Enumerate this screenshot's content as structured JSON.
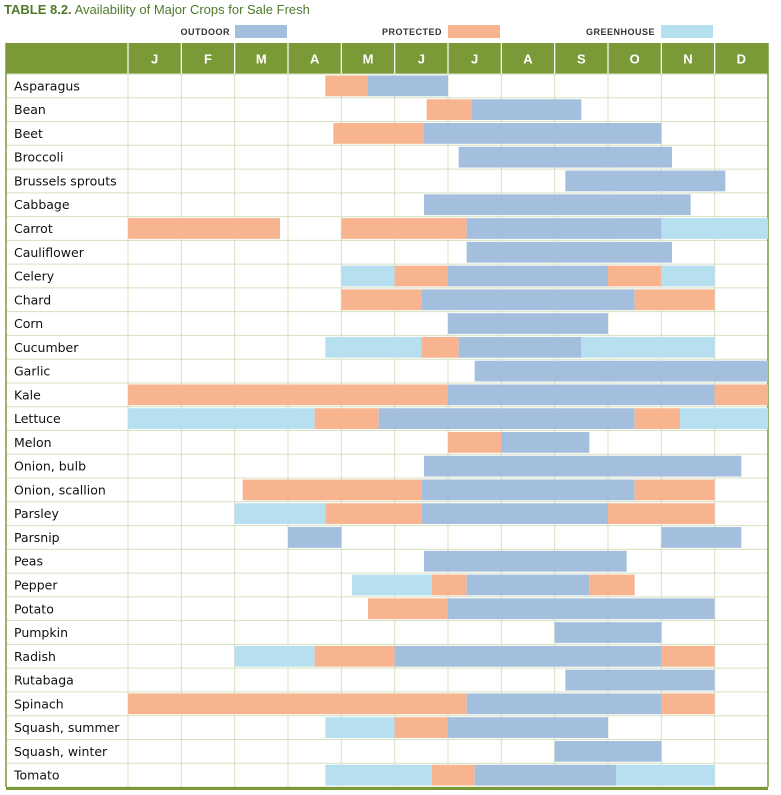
{
  "title_prefix": "TABLE 8.2.",
  "title_text": "Availability of Major Crops for Sale Fresh",
  "legend": [
    {
      "key": "O",
      "label": "OUTDOOR",
      "color": "#a3bfdd"
    },
    {
      "key": "P",
      "label": "PROTECTED",
      "color": "#f7b48f"
    },
    {
      "key": "G",
      "label": "GREENHOUSE",
      "color": "#b6dff0"
    }
  ],
  "chart_data": {
    "type": "table",
    "title": "Availability of Major Crops for Sale Fresh",
    "months": [
      "J",
      "F",
      "M",
      "A",
      "M",
      "J",
      "J",
      "A",
      "S",
      "O",
      "N",
      "D"
    ],
    "x_unit": "month (0 = start of January, 12 = end of December)",
    "crops": [
      {
        "name": "Asparagus",
        "spans": [
          {
            "t": "P",
            "s": 3.7,
            "e": 4.5
          },
          {
            "t": "O",
            "s": 4.5,
            "e": 6.0
          }
        ]
      },
      {
        "name": "Bean",
        "spans": [
          {
            "t": "P",
            "s": 5.6,
            "e": 6.45
          },
          {
            "t": "O",
            "s": 6.45,
            "e": 8.5
          }
        ]
      },
      {
        "name": "Beet",
        "spans": [
          {
            "t": "P",
            "s": 3.85,
            "e": 5.55
          },
          {
            "t": "O",
            "s": 5.55,
            "e": 10.0
          }
        ]
      },
      {
        "name": "Broccoli",
        "spans": [
          {
            "t": "O",
            "s": 6.2,
            "e": 10.2
          }
        ]
      },
      {
        "name": "Brussels sprouts",
        "spans": [
          {
            "t": "O",
            "s": 8.2,
            "e": 11.2
          }
        ]
      },
      {
        "name": "Cabbage",
        "spans": [
          {
            "t": "O",
            "s": 5.55,
            "e": 10.55
          }
        ]
      },
      {
        "name": "Carrot",
        "spans": [
          {
            "t": "P",
            "s": 0.0,
            "e": 2.85
          },
          {
            "t": "P",
            "s": 4.0,
            "e": 6.35
          },
          {
            "t": "O",
            "s": 6.35,
            "e": 10.0
          },
          {
            "t": "G",
            "s": 10.0,
            "e": 12.0
          }
        ]
      },
      {
        "name": "Cauliflower",
        "spans": [
          {
            "t": "O",
            "s": 6.35,
            "e": 10.2
          }
        ]
      },
      {
        "name": "Celery",
        "spans": [
          {
            "t": "G",
            "s": 4.0,
            "e": 5.0
          },
          {
            "t": "P",
            "s": 5.0,
            "e": 6.0
          },
          {
            "t": "O",
            "s": 6.0,
            "e": 9.0
          },
          {
            "t": "P",
            "s": 9.0,
            "e": 10.0
          },
          {
            "t": "G",
            "s": 10.0,
            "e": 11.0
          }
        ]
      },
      {
        "name": "Chard",
        "spans": [
          {
            "t": "P",
            "s": 4.0,
            "e": 5.5
          },
          {
            "t": "O",
            "s": 5.5,
            "e": 9.5
          },
          {
            "t": "P",
            "s": 9.5,
            "e": 11.0
          }
        ]
      },
      {
        "name": "Corn",
        "spans": [
          {
            "t": "O",
            "s": 6.0,
            "e": 9.0
          }
        ]
      },
      {
        "name": "Cucumber",
        "spans": [
          {
            "t": "G",
            "s": 3.7,
            "e": 5.5
          },
          {
            "t": "P",
            "s": 5.5,
            "e": 6.2
          },
          {
            "t": "O",
            "s": 6.2,
            "e": 8.5
          },
          {
            "t": "G",
            "s": 8.5,
            "e": 11.0
          }
        ]
      },
      {
        "name": "Garlic",
        "spans": [
          {
            "t": "O",
            "s": 6.5,
            "e": 12.0
          }
        ]
      },
      {
        "name": "Kale",
        "spans": [
          {
            "t": "P",
            "s": 0.0,
            "e": 6.0
          },
          {
            "t": "O",
            "s": 6.0,
            "e": 11.0
          },
          {
            "t": "P",
            "s": 11.0,
            "e": 12.0
          }
        ]
      },
      {
        "name": "Lettuce",
        "spans": [
          {
            "t": "G",
            "s": 0.0,
            "e": 3.5
          },
          {
            "t": "P",
            "s": 3.5,
            "e": 4.7
          },
          {
            "t": "O",
            "s": 4.7,
            "e": 9.5
          },
          {
            "t": "P",
            "s": 9.5,
            "e": 10.35
          },
          {
            "t": "G",
            "s": 10.35,
            "e": 12.0
          }
        ]
      },
      {
        "name": "Melon",
        "spans": [
          {
            "t": "P",
            "s": 6.0,
            "e": 7.0
          },
          {
            "t": "O",
            "s": 7.0,
            "e": 8.65
          }
        ]
      },
      {
        "name": "Onion, bulb",
        "spans": [
          {
            "t": "O",
            "s": 5.55,
            "e": 11.5
          }
        ]
      },
      {
        "name": "Onion, scallion",
        "spans": [
          {
            "t": "P",
            "s": 2.15,
            "e": 5.5
          },
          {
            "t": "O",
            "s": 5.5,
            "e": 9.5
          },
          {
            "t": "P",
            "s": 9.5,
            "e": 11.0
          }
        ]
      },
      {
        "name": "Parsley",
        "spans": [
          {
            "t": "G",
            "s": 2.0,
            "e": 3.7
          },
          {
            "t": "P",
            "s": 3.7,
            "e": 5.5
          },
          {
            "t": "O",
            "s": 5.5,
            "e": 9.0
          },
          {
            "t": "P",
            "s": 9.0,
            "e": 11.0
          }
        ]
      },
      {
        "name": "Parsnip",
        "spans": [
          {
            "t": "O",
            "s": 3.0,
            "e": 4.0
          },
          {
            "t": "O",
            "s": 10.0,
            "e": 11.5
          }
        ]
      },
      {
        "name": "Peas",
        "spans": [
          {
            "t": "O",
            "s": 5.55,
            "e": 9.35
          }
        ]
      },
      {
        "name": "Pepper",
        "spans": [
          {
            "t": "G",
            "s": 4.2,
            "e": 5.7
          },
          {
            "t": "P",
            "s": 5.7,
            "e": 6.35
          },
          {
            "t": "O",
            "s": 6.35,
            "e": 8.65
          },
          {
            "t": "P",
            "s": 8.65,
            "e": 9.5
          }
        ]
      },
      {
        "name": "Potato",
        "spans": [
          {
            "t": "P",
            "s": 4.5,
            "e": 6.0
          },
          {
            "t": "O",
            "s": 6.0,
            "e": 11.0
          }
        ]
      },
      {
        "name": "Pumpkin",
        "spans": [
          {
            "t": "O",
            "s": 8.0,
            "e": 10.0
          }
        ]
      },
      {
        "name": "Radish",
        "spans": [
          {
            "t": "G",
            "s": 2.0,
            "e": 3.5
          },
          {
            "t": "P",
            "s": 3.5,
            "e": 5.0
          },
          {
            "t": "O",
            "s": 5.0,
            "e": 10.0
          },
          {
            "t": "P",
            "s": 10.0,
            "e": 11.0
          }
        ]
      },
      {
        "name": "Rutabaga",
        "spans": [
          {
            "t": "O",
            "s": 8.2,
            "e": 11.0
          }
        ]
      },
      {
        "name": "Spinach",
        "spans": [
          {
            "t": "P",
            "s": 0.0,
            "e": 6.35
          },
          {
            "t": "O",
            "s": 6.35,
            "e": 10.0
          },
          {
            "t": "P",
            "s": 10.0,
            "e": 11.0
          }
        ]
      },
      {
        "name": "Squash, summer",
        "spans": [
          {
            "t": "G",
            "s": 3.7,
            "e": 5.0
          },
          {
            "t": "P",
            "s": 5.0,
            "e": 6.0
          },
          {
            "t": "O",
            "s": 6.0,
            "e": 9.0
          }
        ]
      },
      {
        "name": "Squash, winter",
        "spans": [
          {
            "t": "O",
            "s": 8.0,
            "e": 10.0
          }
        ]
      },
      {
        "name": "Tomato",
        "spans": [
          {
            "t": "G",
            "s": 3.7,
            "e": 5.7
          },
          {
            "t": "P",
            "s": 5.7,
            "e": 6.5
          },
          {
            "t": "O",
            "s": 6.5,
            "e": 9.15
          },
          {
            "t": "G",
            "s": 9.15,
            "e": 11.0
          }
        ]
      }
    ]
  }
}
